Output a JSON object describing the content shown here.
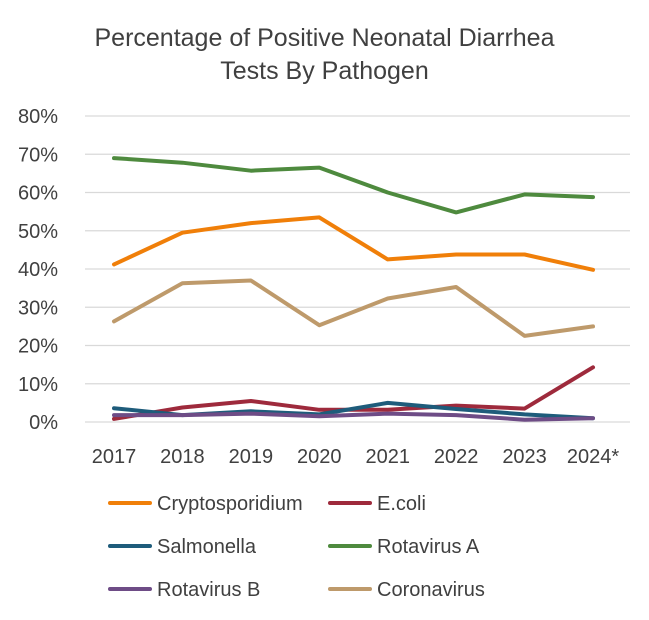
{
  "chart_data": {
    "type": "line",
    "title_lines": [
      "Percentage of Positive Neonatal Diarrhea",
      "Tests By Pathogen"
    ],
    "categories": [
      "2017",
      "2018",
      "2019",
      "2020",
      "2021",
      "2022",
      "2023",
      "2024*"
    ],
    "y_ticks": [
      "0%",
      "10%",
      "20%",
      "30%",
      "40%",
      "50%",
      "60%",
      "70%",
      "80%"
    ],
    "ylim": [
      0,
      80
    ],
    "grid": true,
    "legend_position": "bottom",
    "series": [
      {
        "name": "Cryptosporidium",
        "color": "#F07F09",
        "values": [
          41.2,
          49.5,
          52.0,
          53.5,
          42.5,
          43.8,
          43.8,
          39.8
        ]
      },
      {
        "name": "E.coli",
        "color": "#9E2A3C",
        "values": [
          0.8,
          3.8,
          5.5,
          3.2,
          3.2,
          4.3,
          3.5,
          14.3
        ]
      },
      {
        "name": "Salmonella",
        "color": "#1E5C7B",
        "values": [
          3.6,
          1.8,
          2.8,
          2.0,
          5.0,
          3.4,
          2.0,
          1.0
        ]
      },
      {
        "name": "Rotavirus A",
        "color": "#4E8A3E",
        "values": [
          69.0,
          67.8,
          65.7,
          66.5,
          60.0,
          54.8,
          59.5,
          58.8
        ]
      },
      {
        "name": "Rotavirus B",
        "color": "#6E4C86",
        "values": [
          1.8,
          1.8,
          2.2,
          1.5,
          2.2,
          1.8,
          0.6,
          1.0
        ]
      },
      {
        "name": "Coronavirus",
        "color": "#BE9A6B",
        "values": [
          26.3,
          36.3,
          37.0,
          25.3,
          32.3,
          35.3,
          22.5,
          25.0
        ]
      }
    ]
  }
}
